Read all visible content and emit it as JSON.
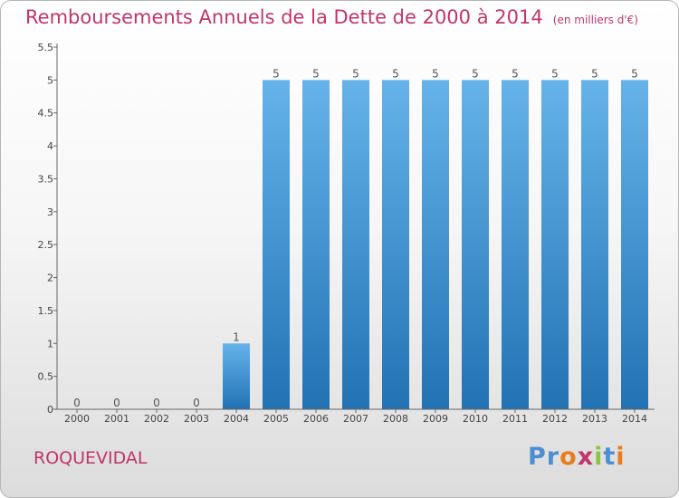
{
  "title": "Remboursements Annuels de la Dette de 2000 à 2014",
  "subtitle": "(en milliers d'€)",
  "commune": "ROQUEVIDAL",
  "logo": {
    "letters": [
      "P",
      "r",
      "o",
      "x",
      "i",
      "t",
      "i"
    ],
    "colors": [
      "#4a8fd4",
      "#4a8fd4",
      "#e87d1e",
      "#c0356b",
      "#8cc63f",
      "#4a8fd4",
      "#e87d1e"
    ]
  },
  "colors": {
    "title": "#c0356b",
    "bar_top": "#66b3ea",
    "bar_bottom": "#2272b4"
  },
  "chart_data": {
    "type": "bar",
    "categories": [
      "2000",
      "2001",
      "2002",
      "2003",
      "2004",
      "2005",
      "2006",
      "2007",
      "2008",
      "2009",
      "2010",
      "2011",
      "2012",
      "2013",
      "2014"
    ],
    "values": [
      0,
      0,
      0,
      0,
      1,
      5,
      5,
      5,
      5,
      5,
      5,
      5,
      5,
      5,
      5
    ],
    "data_labels": [
      "0",
      "0",
      "0",
      "0",
      "1",
      "5",
      "5",
      "5",
      "5",
      "5",
      "5",
      "5",
      "5",
      "5",
      "5"
    ],
    "ylim": [
      0,
      5.5
    ],
    "yticks": [
      0,
      0.5,
      1,
      1.5,
      2,
      2.5,
      3,
      3.5,
      4,
      4.5,
      5,
      5.5
    ],
    "ytick_labels": [
      "0",
      "0.5",
      "1",
      "1.5",
      "2",
      "2.5",
      "3",
      "3.5",
      "4",
      "4.5",
      "5",
      "5.5"
    ],
    "grid": false,
    "legend": "none"
  }
}
